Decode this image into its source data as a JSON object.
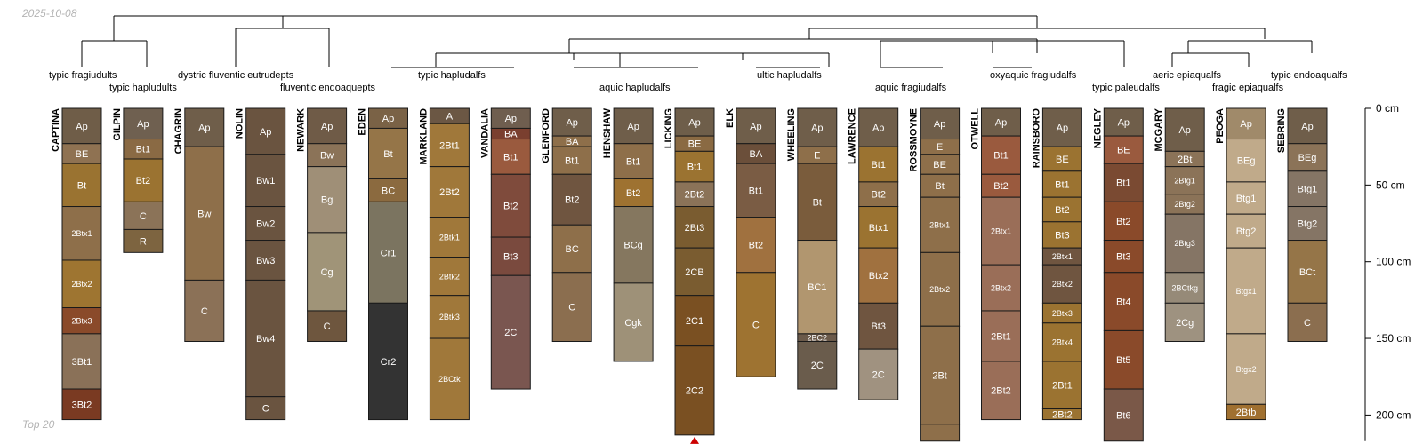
{
  "header": {
    "date": "2025-10-08"
  },
  "footer": {
    "note": "Top 20"
  },
  "chart_data": {
    "type": "soil-profile-sketches",
    "depth_axis": {
      "unit": "cm",
      "ticks": [
        "0 cm",
        "50 cm",
        "100 cm",
        "150 cm",
        "200 cm"
      ],
      "tick_values": [
        0,
        50,
        100,
        150,
        200
      ],
      "range": [
        0,
        217
      ]
    },
    "dendrogram_groups": [
      {
        "label": "typic fragiudults",
        "members": [
          "CAPTINA"
        ]
      },
      {
        "label": "typic hapludults",
        "members": [
          "GILPIN"
        ]
      },
      {
        "label": "dystric fluventic eutrudepts",
        "members": [
          "CHAGRIN",
          "NOLIN"
        ]
      },
      {
        "label": "fluventic endoaquepts",
        "members": [
          "NEWARK"
        ]
      },
      {
        "label": "typic hapludalfs",
        "members": [
          "EDEN",
          "MARKLAND",
          "VANDALIA"
        ]
      },
      {
        "label": "aquic hapludalfs",
        "members": [
          "GLENFORD",
          "HENSHAW",
          "LICKING"
        ]
      },
      {
        "label": "ultic hapludalfs",
        "members": [
          "ELK",
          "WHEELING"
        ]
      },
      {
        "label": "aquic fragiudalfs",
        "members": [
          "LAWRENCE",
          "ROSSMOYNE"
        ]
      },
      {
        "label": "oxyaquic fragiudalfs",
        "members": [
          "OTWELL",
          "RAINSBORO"
        ]
      },
      {
        "label": "typic paleudalfs",
        "members": [
          "NEGLEY"
        ]
      },
      {
        "label": "aeric epiaqualfs",
        "members": [
          "MCGARY"
        ]
      },
      {
        "label": "fragic epiaqualfs",
        "members": [
          "PEOGA"
        ]
      },
      {
        "label": "typic endoaqualfs",
        "members": [
          "SEBRING"
        ]
      }
    ],
    "profiles": [
      {
        "name": "CAPTINA",
        "horizons": [
          {
            "n": "Ap",
            "t": 0,
            "b": 23,
            "c": "#6f5d48"
          },
          {
            "n": "BE",
            "t": 23,
            "b": 36,
            "c": "#8f7252"
          },
          {
            "n": "Bt",
            "t": 36,
            "b": 64,
            "c": "#9a7331"
          },
          {
            "n": "2Btx1",
            "t": 64,
            "b": 99,
            "c": "#8e6f4a"
          },
          {
            "n": "2Btx2",
            "t": 99,
            "b": 130,
            "c": "#9e7531"
          },
          {
            "n": "2Btx3",
            "t": 130,
            "b": 147,
            "c": "#8a4a2a"
          },
          {
            "n": "3Bt1",
            "t": 147,
            "b": 183,
            "c": "#8a7158"
          },
          {
            "n": "3Bt2",
            "t": 183,
            "b": 203,
            "c": "#7a3a22"
          }
        ]
      },
      {
        "name": "GILPIN",
        "horizons": [
          {
            "n": "Ap",
            "t": 0,
            "b": 20,
            "c": "#6f6050"
          },
          {
            "n": "Bt1",
            "t": 20,
            "b": 33,
            "c": "#8a6a44"
          },
          {
            "n": "Bt2",
            "t": 33,
            "b": 61,
            "c": "#9b7331"
          },
          {
            "n": "C",
            "t": 61,
            "b": 79,
            "c": "#8b7358"
          },
          {
            "n": "R",
            "t": 79,
            "b": 94,
            "c": "#7d6440"
          }
        ]
      },
      {
        "name": "CHAGRIN",
        "horizons": [
          {
            "n": "Ap",
            "t": 0,
            "b": 25,
            "c": "#6f5e4a"
          },
          {
            "n": "Bw",
            "t": 25,
            "b": 112,
            "c": "#8e6f4a"
          },
          {
            "n": "C",
            "t": 112,
            "b": 152,
            "c": "#8b7157"
          }
        ]
      },
      {
        "name": "NOLIN",
        "horizons": [
          {
            "n": "Ap",
            "t": 0,
            "b": 30,
            "c": "#6a5440"
          },
          {
            "n": "Bw1",
            "t": 30,
            "b": 64,
            "c": "#6a5440"
          },
          {
            "n": "Bw2",
            "t": 64,
            "b": 86,
            "c": "#6a5440"
          },
          {
            "n": "Bw3",
            "t": 86,
            "b": 112,
            "c": "#6a5440"
          },
          {
            "n": "Bw4",
            "t": 112,
            "b": 188,
            "c": "#6a5440"
          },
          {
            "n": "C",
            "t": 188,
            "b": 203,
            "c": "#6a5440"
          }
        ]
      },
      {
        "name": "NEWARK",
        "horizons": [
          {
            "n": "Ap",
            "t": 0,
            "b": 23,
            "c": "#6f5b47"
          },
          {
            "n": "Bw",
            "t": 23,
            "b": 38,
            "c": "#8b7358"
          },
          {
            "n": "Bg",
            "t": 38,
            "b": 81,
            "c": "#9f8f77"
          },
          {
            "n": "Cg",
            "t": 81,
            "b": 132,
            "c": "#a09478"
          },
          {
            "n": "C",
            "t": 132,
            "b": 152,
            "c": "#6e563e"
          }
        ]
      },
      {
        "name": "EDEN",
        "horizons": [
          {
            "n": "Ap",
            "t": 0,
            "b": 13,
            "c": "#7a6246"
          },
          {
            "n": "Bt",
            "t": 13,
            "b": 46,
            "c": "#957548"
          },
          {
            "n": "BC",
            "t": 46,
            "b": 61,
            "c": "#8b6a3f"
          },
          {
            "n": "Cr1",
            "t": 61,
            "b": 127,
            "c": "#7b7460"
          },
          {
            "n": "Cr2",
            "t": 127,
            "b": 203,
            "c": "#333333"
          }
        ]
      },
      {
        "name": "MARKLAND",
        "horizons": [
          {
            "n": "A",
            "t": 0,
            "b": 10,
            "c": "#6b5744"
          },
          {
            "n": "2Bt1",
            "t": 10,
            "b": 38,
            "c": "#a0783a"
          },
          {
            "n": "2Bt2",
            "t": 38,
            "b": 71,
            "c": "#a0783a"
          },
          {
            "n": "2Btk1",
            "t": 71,
            "b": 97,
            "c": "#a0783a"
          },
          {
            "n": "2Btk2",
            "t": 97,
            "b": 122,
            "c": "#a0783a"
          },
          {
            "n": "2Btk3",
            "t": 122,
            "b": 150,
            "c": "#a0783a"
          },
          {
            "n": "2BCtk",
            "t": 150,
            "b": 203,
            "c": "#a0783a"
          }
        ]
      },
      {
        "name": "VANDALIA",
        "horizons": [
          {
            "n": "Ap",
            "t": 0,
            "b": 13,
            "c": "#6f5e4f"
          },
          {
            "n": "BA",
            "t": 13,
            "b": 20,
            "c": "#7a3f2f"
          },
          {
            "n": "Bt1",
            "t": 20,
            "b": 43,
            "c": "#9a5a3e"
          },
          {
            "n": "Bt2",
            "t": 43,
            "b": 84,
            "c": "#7f4b3c"
          },
          {
            "n": "Bt3",
            "t": 84,
            "b": 109,
            "c": "#7a4a3e"
          },
          {
            "n": "2C",
            "t": 109,
            "b": 183,
            "c": "#7a5650"
          }
        ]
      },
      {
        "name": "GLENFORD",
        "horizons": [
          {
            "n": "Ap",
            "t": 0,
            "b": 18,
            "c": "#6f5e4a"
          },
          {
            "n": "BA",
            "t": 18,
            "b": 25,
            "c": "#8e6f4a"
          },
          {
            "n": "Bt1",
            "t": 25,
            "b": 43,
            "c": "#8e6f4a"
          },
          {
            "n": "Bt2",
            "t": 43,
            "b": 76,
            "c": "#6f5540"
          },
          {
            "n": "BC",
            "t": 76,
            "b": 107,
            "c": "#8e6f4a"
          },
          {
            "n": "C",
            "t": 107,
            "b": 152,
            "c": "#8b6e4f"
          }
        ]
      },
      {
        "name": "HENSHAW",
        "horizons": [
          {
            "n": "Ap",
            "t": 0,
            "b": 23,
            "c": "#6f5e4a"
          },
          {
            "n": "Bt1",
            "t": 23,
            "b": 46,
            "c": "#8e6f4a"
          },
          {
            "n": "Bt2",
            "t": 46,
            "b": 64,
            "c": "#9e7231"
          },
          {
            "n": "BCg",
            "t": 64,
            "b": 114,
            "c": "#85775f"
          },
          {
            "n": "Cgk",
            "t": 114,
            "b": 165,
            "c": "#9e9178"
          }
        ]
      },
      {
        "name": "LICKING",
        "horizons": [
          {
            "n": "Ap",
            "t": 0,
            "b": 18,
            "c": "#6e5e4a"
          },
          {
            "n": "BE",
            "t": 18,
            "b": 28,
            "c": "#8a6a43"
          },
          {
            "n": "Bt1",
            "t": 28,
            "b": 48,
            "c": "#9b7331"
          },
          {
            "n": "2Bt2",
            "t": 48,
            "b": 64,
            "c": "#8b7358"
          },
          {
            "n": "2Bt3",
            "t": 64,
            "b": 91,
            "c": "#7a5c30"
          },
          {
            "n": "2CB",
            "t": 91,
            "b": 122,
            "c": "#7a5c30"
          },
          {
            "n": "2C1",
            "t": 122,
            "b": 155,
            "c": "#7a5022"
          },
          {
            "n": "2C2",
            "t": 155,
            "b": 213,
            "c": "#7a5022"
          }
        ]
      },
      {
        "name": "ELK",
        "horizons": [
          {
            "n": "Ap",
            "t": 0,
            "b": 23,
            "c": "#6f5e4a"
          },
          {
            "n": "BA",
            "t": 23,
            "b": 36,
            "c": "#6b4f3a"
          },
          {
            "n": "Bt1",
            "t": 36,
            "b": 71,
            "c": "#7a5c44"
          },
          {
            "n": "Bt2",
            "t": 71,
            "b": 107,
            "c": "#a0713f"
          },
          {
            "n": "C",
            "t": 107,
            "b": 175,
            "c": "#9e7331"
          }
        ]
      },
      {
        "name": "WHEELING",
        "horizons": [
          {
            "n": "Ap",
            "t": 0,
            "b": 25,
            "c": "#6f5e4a"
          },
          {
            "n": "E",
            "t": 25,
            "b": 36,
            "c": "#8e6f4a"
          },
          {
            "n": "Bt",
            "t": 36,
            "b": 86,
            "c": "#7a5c3c"
          },
          {
            "n": "BC1",
            "t": 86,
            "b": 147,
            "c": "#b1966f"
          },
          {
            "n": "2BC2",
            "t": 147,
            "b": 152,
            "c": "#6b5a4a"
          },
          {
            "n": "2C",
            "t": 152,
            "b": 183,
            "c": "#6a5c4c"
          }
        ]
      },
      {
        "name": "LAWRENCE",
        "horizons": [
          {
            "n": "Ap",
            "t": 0,
            "b": 25,
            "c": "#6f5e4a"
          },
          {
            "n": "Bt1",
            "t": 25,
            "b": 48,
            "c": "#9b7331"
          },
          {
            "n": "Bt2",
            "t": 48,
            "b": 64,
            "c": "#8e6f4a"
          },
          {
            "n": "Btx1",
            "t": 64,
            "b": 91,
            "c": "#9b7331"
          },
          {
            "n": "Btx2",
            "t": 91,
            "b": 127,
            "c": "#a0713f"
          },
          {
            "n": "Bt3",
            "t": 127,
            "b": 157,
            "c": "#6f5540"
          },
          {
            "n": "2C",
            "t": 157,
            "b": 190,
            "c": "#a09280"
          }
        ]
      },
      {
        "name": "ROSSMOYNE",
        "horizons": [
          {
            "n": "Ap",
            "t": 0,
            "b": 20,
            "c": "#6f5e4a"
          },
          {
            "n": "E",
            "t": 20,
            "b": 30,
            "c": "#8e6f4a"
          },
          {
            "n": "BE",
            "t": 30,
            "b": 43,
            "c": "#8e6f4a"
          },
          {
            "n": "Bt",
            "t": 43,
            "b": 58,
            "c": "#8e6f4a"
          },
          {
            "n": "2Btx1",
            "t": 58,
            "b": 94,
            "c": "#8e6f4a"
          },
          {
            "n": "2Btx2",
            "t": 94,
            "b": 142,
            "c": "#8e6f4a"
          },
          {
            "n": "2Bt",
            "t": 142,
            "b": 206,
            "c": "#8e6f4a"
          },
          {
            "n": "",
            "t": 206,
            "b": 217,
            "c": "#8e6f4a"
          }
        ]
      },
      {
        "name": "OTWELL",
        "horizons": [
          {
            "n": "Ap",
            "t": 0,
            "b": 18,
            "c": "#6f5e4a"
          },
          {
            "n": "Bt1",
            "t": 18,
            "b": 43,
            "c": "#9a5a3e"
          },
          {
            "n": "Bt2",
            "t": 43,
            "b": 58,
            "c": "#9a5a3e"
          },
          {
            "n": "2Btx1",
            "t": 58,
            "b": 102,
            "c": "#9a6e58"
          },
          {
            "n": "2Btx2",
            "t": 102,
            "b": 132,
            "c": "#9a6e58"
          },
          {
            "n": "2Bt1",
            "t": 132,
            "b": 165,
            "c": "#9a6e58"
          },
          {
            "n": "2Bt2",
            "t": 165,
            "b": 203,
            "c": "#9a6e58"
          }
        ]
      },
      {
        "name": "RAINSBORO",
        "horizons": [
          {
            "n": "Ap",
            "t": 0,
            "b": 25,
            "c": "#6f5e4a"
          },
          {
            "n": "BE",
            "t": 25,
            "b": 41,
            "c": "#9b7331"
          },
          {
            "n": "Bt1",
            "t": 41,
            "b": 58,
            "c": "#9b7331"
          },
          {
            "n": "Bt2",
            "t": 58,
            "b": 74,
            "c": "#9b7331"
          },
          {
            "n": "Bt3",
            "t": 74,
            "b": 91,
            "c": "#9b7331"
          },
          {
            "n": "2Btx1",
            "t": 91,
            "b": 102,
            "c": "#6f5540"
          },
          {
            "n": "2Btx2",
            "t": 102,
            "b": 127,
            "c": "#6f5540"
          },
          {
            "n": "2Btx3",
            "t": 127,
            "b": 140,
            "c": "#9b7331"
          },
          {
            "n": "2Btx4",
            "t": 140,
            "b": 165,
            "c": "#9b7331"
          },
          {
            "n": "2Bt1",
            "t": 165,
            "b": 196,
            "c": "#9b7331"
          },
          {
            "n": "2Bt2",
            "t": 196,
            "b": 203,
            "c": "#9b7331"
          }
        ]
      },
      {
        "name": "NEGLEY",
        "horizons": [
          {
            "n": "Ap",
            "t": 0,
            "b": 18,
            "c": "#6f5e4a"
          },
          {
            "n": "BE",
            "t": 18,
            "b": 36,
            "c": "#9a5a3e"
          },
          {
            "n": "Bt1",
            "t": 36,
            "b": 61,
            "c": "#7a4a32"
          },
          {
            "n": "Bt2",
            "t": 61,
            "b": 86,
            "c": "#8a4a2a"
          },
          {
            "n": "Bt3",
            "t": 86,
            "b": 107,
            "c": "#8a4a2a"
          },
          {
            "n": "Bt4",
            "t": 107,
            "b": 145,
            "c": "#8a4a2a"
          },
          {
            "n": "Bt5",
            "t": 145,
            "b": 183,
            "c": "#8a4a2a"
          },
          {
            "n": "Bt6",
            "t": 183,
            "b": 217,
            "c": "#7a5848"
          }
        ]
      },
      {
        "name": "MCGARY",
        "horizons": [
          {
            "n": "Ap",
            "t": 0,
            "b": 28,
            "c": "#6f5e4a"
          },
          {
            "n": "2Bt",
            "t": 28,
            "b": 38,
            "c": "#8b7358"
          },
          {
            "n": "2Btg1",
            "t": 38,
            "b": 56,
            "c": "#8b7358"
          },
          {
            "n": "2Btg2",
            "t": 56,
            "b": 69,
            "c": "#8b7358"
          },
          {
            "n": "2Btg3",
            "t": 69,
            "b": 107,
            "c": "#857565"
          },
          {
            "n": "2BCtkg",
            "t": 107,
            "b": 127,
            "c": "#968a78"
          },
          {
            "n": "2Cg",
            "t": 127,
            "b": 152,
            "c": "#9e9280"
          }
        ]
      },
      {
        "name": "PEOGA",
        "horizons": [
          {
            "n": "Ap",
            "t": 0,
            "b": 20,
            "c": "#a08a6a"
          },
          {
            "n": "BEg",
            "t": 20,
            "b": 48,
            "c": "#c0aa8a"
          },
          {
            "n": "Btg1",
            "t": 48,
            "b": 69,
            "c": "#c0aa8a"
          },
          {
            "n": "Btg2",
            "t": 69,
            "b": 91,
            "c": "#c0aa8a"
          },
          {
            "n": "Btgx1",
            "t": 91,
            "b": 147,
            "c": "#c0aa8a"
          },
          {
            "n": "Btgx2",
            "t": 147,
            "b": 193,
            "c": "#c0aa8a"
          },
          {
            "n": "2Btb",
            "t": 193,
            "b": 203,
            "c": "#a07030"
          }
        ]
      },
      {
        "name": "SEBRING",
        "horizons": [
          {
            "n": "Ap",
            "t": 0,
            "b": 23,
            "c": "#6f5e4a"
          },
          {
            "n": "BEg",
            "t": 23,
            "b": 41,
            "c": "#8b7358"
          },
          {
            "n": "Btg1",
            "t": 41,
            "b": 64,
            "c": "#857565"
          },
          {
            "n": "Btg2",
            "t": 64,
            "b": 86,
            "c": "#857565"
          },
          {
            "n": "BCt",
            "t": 86,
            "b": 127,
            "c": "#957548"
          },
          {
            "n": "C",
            "t": 127,
            "b": 152,
            "c": "#8b6e4f"
          }
        ]
      }
    ],
    "truncated_profiles": [
      "LICKING"
    ]
  }
}
